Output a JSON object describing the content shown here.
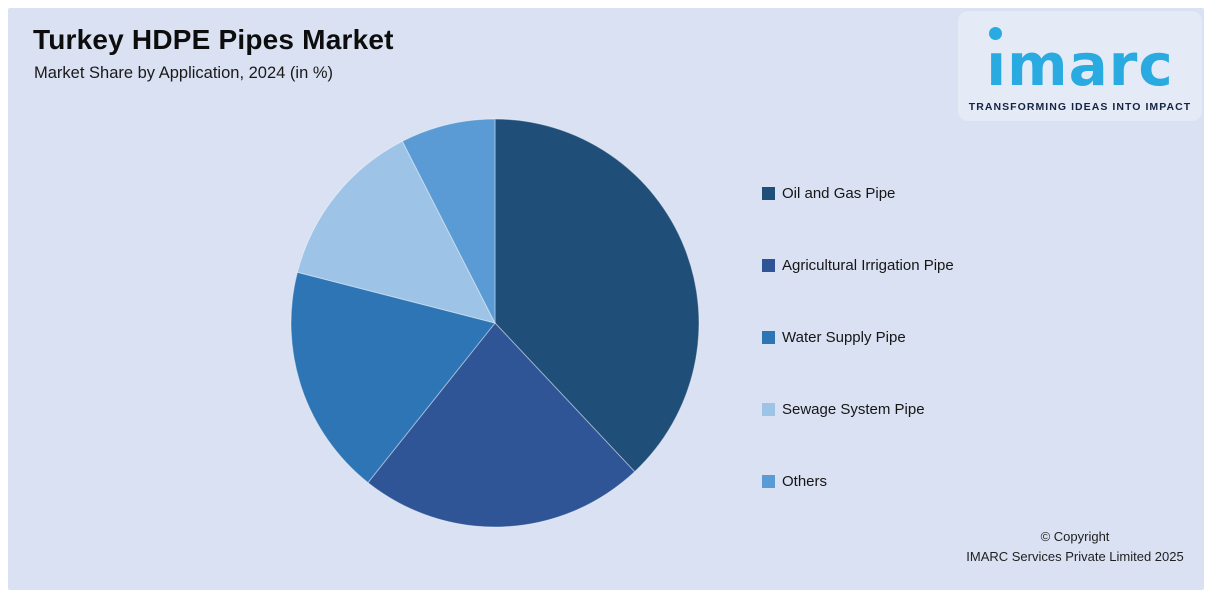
{
  "chart_data": {
    "type": "pie",
    "title": "Turkey HDPE Pipes Market",
    "subtitle": "Market Share by Application, 2024 (in %)",
    "unit": "%",
    "categories": [
      "Oil and Gas Pipe",
      "Agricultural Irrigation Pipe",
      "Water Supply Pipe",
      "Sewage System Pipe",
      "Others"
    ],
    "values": [
      38.0,
      22.7,
      18.3,
      13.5,
      7.5
    ],
    "colors": [
      "#1F4E79",
      "#2F5597",
      "#2E75B6",
      "#9DC3E6",
      "#5B9BD5"
    ],
    "start_angle": "12 o'clock",
    "direction": "clockwise",
    "legend_position": "right",
    "data_labels_visible": false,
    "note": "Slice values are not labeled in the image; percentages estimated from slice angles."
  },
  "logo": {
    "wordmark": "imarc",
    "tagline": "TRANSFORMING IDEAS INTO IMPACT",
    "brand_color": "#29ABE2"
  },
  "footer": {
    "line1": "© Copyright",
    "line2": "IMARC Services Private Limited 2025"
  },
  "colors": {
    "page_bg": "#FFFFFF",
    "panel_bg": "#D9E1F2"
  }
}
